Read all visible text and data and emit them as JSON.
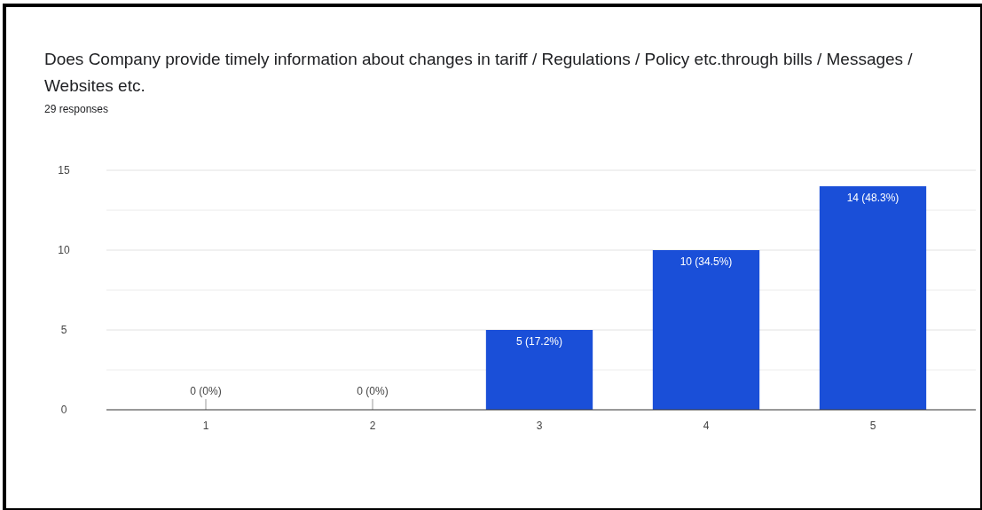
{
  "chart_data": {
    "type": "bar",
    "title": "Does Company provide timely information about changes in tariff / Regulations / Policy etc.through bills / Messages / Websites etc.",
    "subtitle": "29 responses",
    "categories": [
      "1",
      "2",
      "3",
      "4",
      "5"
    ],
    "values": [
      0,
      0,
      5,
      10,
      14
    ],
    "value_labels": [
      "0 (0%)",
      "0 (0%)",
      "5 (17.2%)",
      "10 (34.5%)",
      "14 (48.3%)"
    ],
    "color": "#1a4fd8",
    "ylim": [
      0,
      15
    ],
    "yticks": [
      0,
      {
        "value": 2.5,
        "label": null
      },
      5,
      {
        "value": 7.5,
        "label": null
      },
      10,
      {
        "value": 12.5,
        "label": null
      },
      15
    ],
    "grid": "y"
  }
}
